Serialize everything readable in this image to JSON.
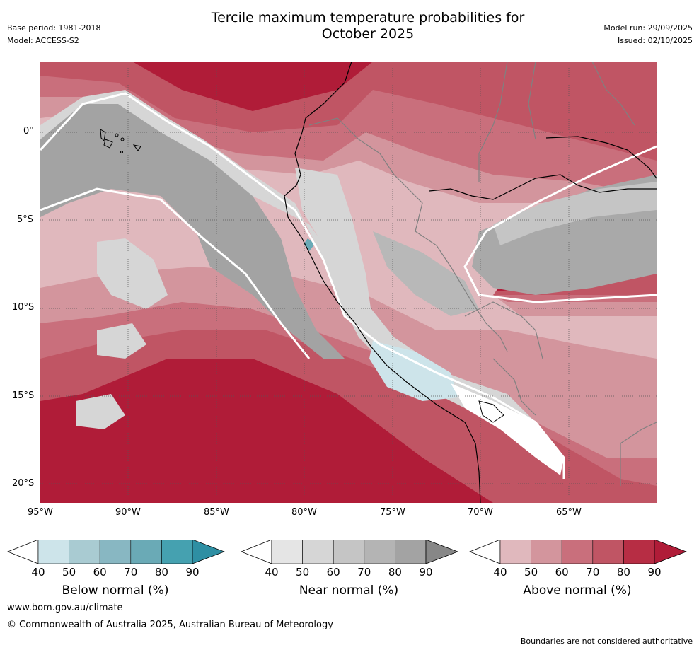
{
  "header": {
    "title": "Tercile maximum temperature probabilities for\nOctober 2025",
    "title_line1": "Tercile maximum temperature probabilities for",
    "title_line2": "October 2025",
    "base_period": "Base period: 1981-2018",
    "model": "Model: ACCESS-S2",
    "model_run": "Model run: 29/09/2025",
    "issued": "Issued: 02/10/2025"
  },
  "map": {
    "lat_labels": [
      "0°",
      "5°S",
      "10°S",
      "15°S",
      "20°S"
    ],
    "lon_labels": [
      "95°W",
      "90°W",
      "85°W",
      "80°W",
      "75°W",
      "70°W",
      "65°W"
    ],
    "grid": true
  },
  "colorbars": [
    {
      "label": "Below normal (%)",
      "ticks": [
        "40",
        "50",
        "60",
        "70",
        "80",
        "90"
      ],
      "colors": [
        "#ffffff",
        "#cde4ea",
        "#a9cbd2",
        "#88b7c2",
        "#6aaab6",
        "#45a1b0",
        "#2e8fa3"
      ]
    },
    {
      "label": "Near normal (%)",
      "ticks": [
        "40",
        "50",
        "60",
        "70",
        "80",
        "90"
      ],
      "colors": [
        "#ffffff",
        "#e5e5e5",
        "#d6d6d6",
        "#c5c5c5",
        "#b4b4b4",
        "#a3a3a3",
        "#878787"
      ]
    },
    {
      "label": "Above normal (%)",
      "ticks": [
        "40",
        "50",
        "60",
        "70",
        "80",
        "90"
      ],
      "colors": [
        "#ffffff",
        "#e0b8bd",
        "#d3959d",
        "#c96f7c",
        "#c05564",
        "#b72d44",
        "#b01c38"
      ]
    }
  ],
  "footer": {
    "url": "www.bom.gov.au/climate",
    "copyright": "© Commonwealth of Australia 2025, Australian Bureau of Meteorology",
    "disclaimer": "Boundaries are not considered authoritative"
  }
}
